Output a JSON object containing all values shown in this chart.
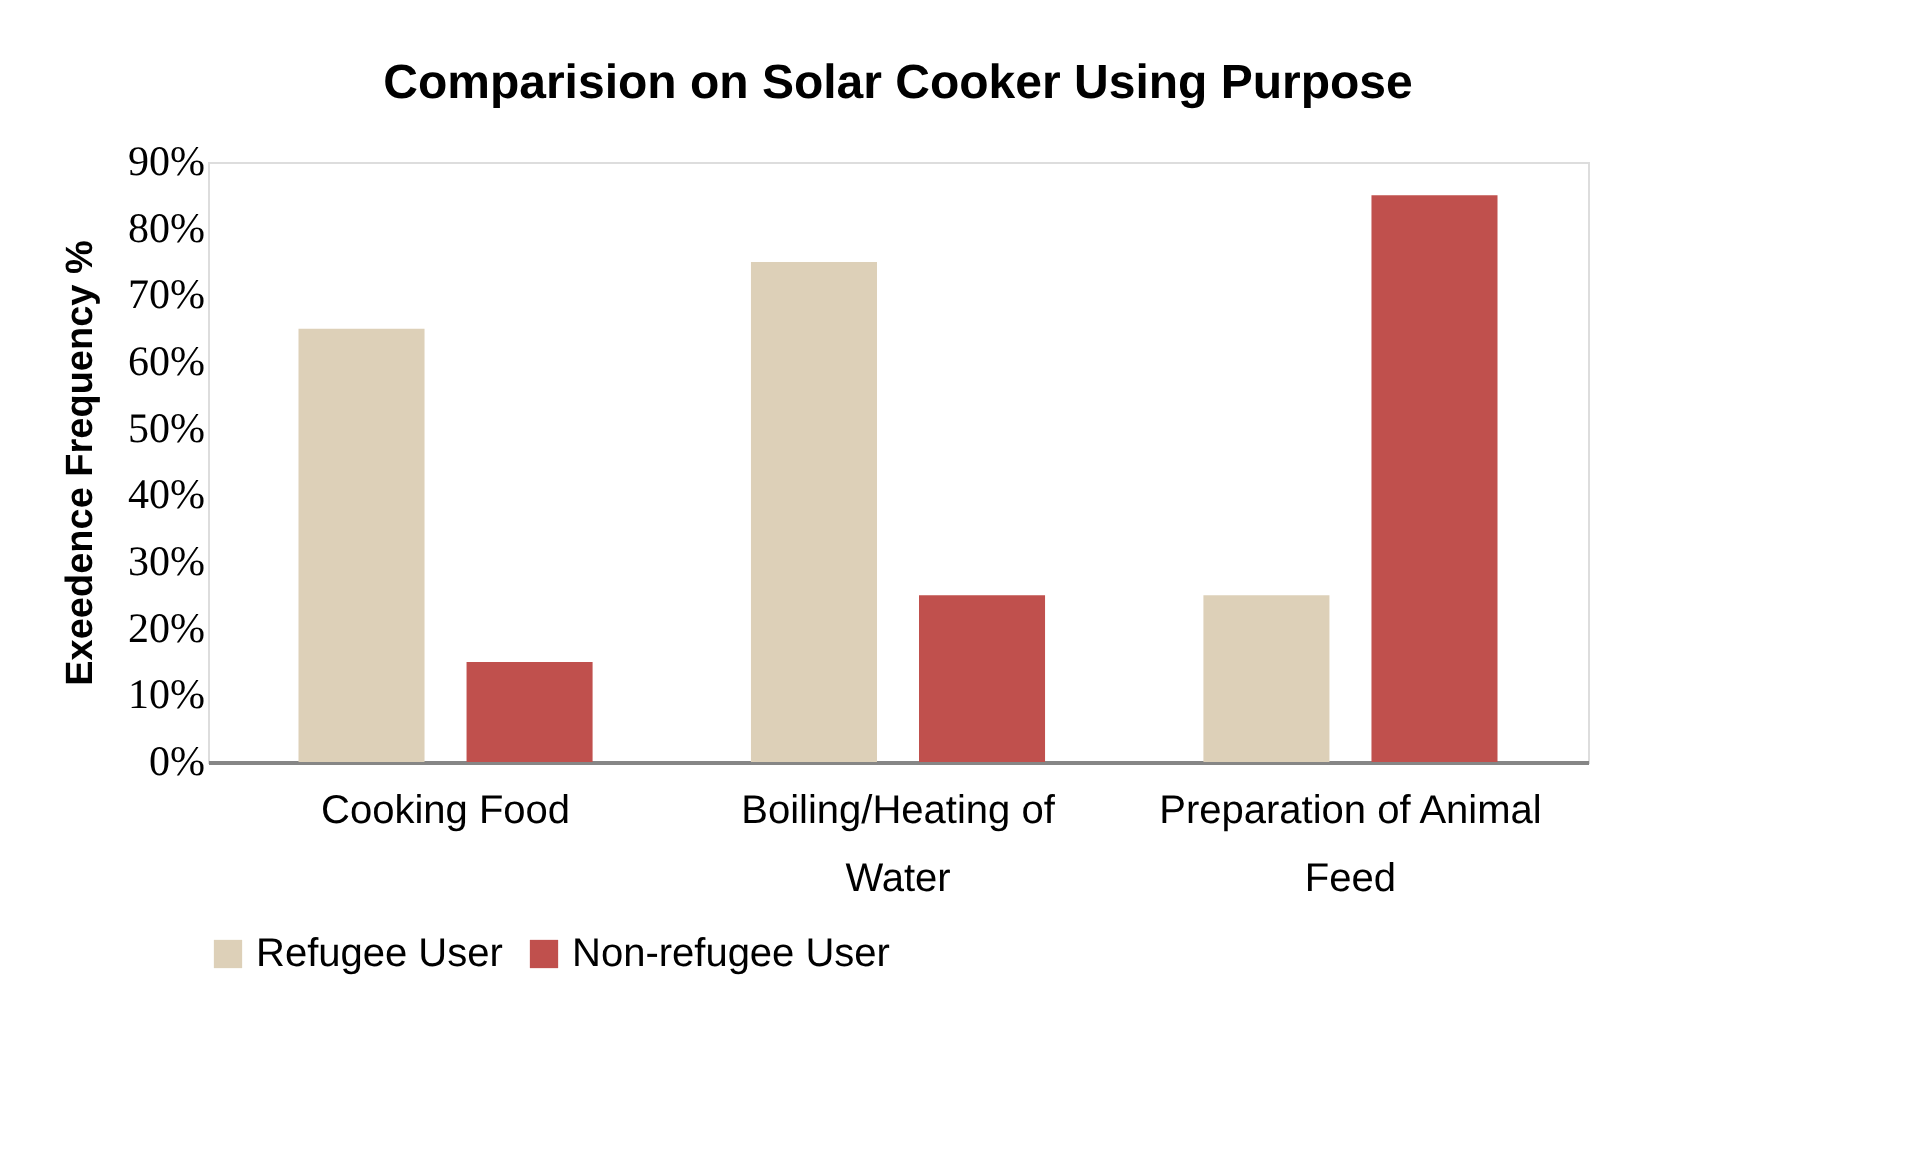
{
  "chart_data": {
    "type": "bar",
    "title": "Comparision on Solar Cooker Using Purpose",
    "ylabel": "Exeedence Frequency %",
    "categories": [
      "Cooking Food",
      "Boiling/Heating  of Water",
      "Preparation of Animal Feed"
    ],
    "series": [
      {
        "name": "Refugee User",
        "color": "#ddd0b8",
        "values": [
          65,
          75,
          25
        ]
      },
      {
        "name": "Non-refugee User",
        "color": "#c0504d",
        "values": [
          15,
          25,
          85
        ]
      }
    ],
    "ylim": [
      0,
      90
    ],
    "yticks": [
      {
        "value": 0,
        "label": "0%"
      },
      {
        "value": 10,
        "label": "10%"
      },
      {
        "value": 20,
        "label": "20%"
      },
      {
        "value": 30,
        "label": "30%"
      },
      {
        "value": 40,
        "label": "40%"
      },
      {
        "value": 50,
        "label": "50%"
      },
      {
        "value": 60,
        "label": "60%"
      },
      {
        "value": 70,
        "label": "70%"
      },
      {
        "value": 80,
        "label": "80%"
      },
      {
        "value": 90,
        "label": "90%"
      }
    ],
    "grid": false,
    "legend": "bottom"
  }
}
